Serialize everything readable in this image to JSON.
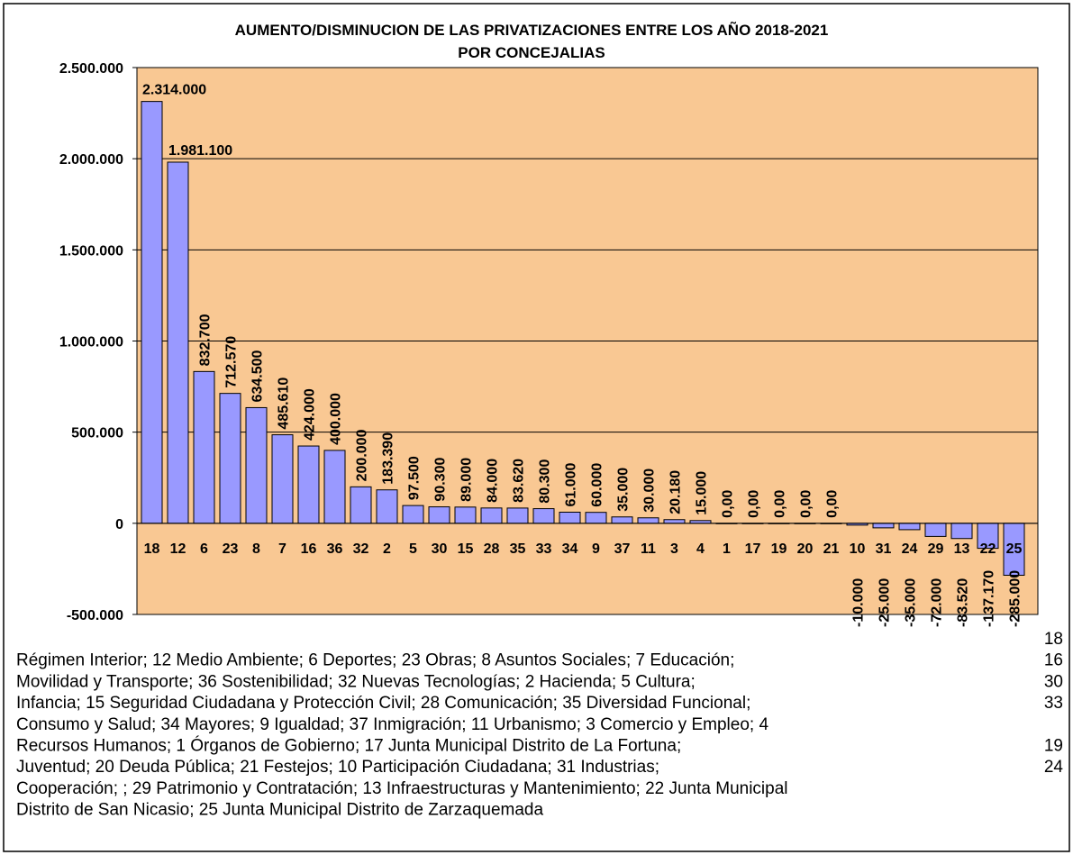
{
  "chart_data": {
    "type": "bar",
    "title_lines": [
      "AUMENTO/DISMINUCION DE LAS PRIVATIZACIONES ENTRE LOS AÑO 2018-2021",
      "POR CONCEJALIAS"
    ],
    "categories": [
      "18",
      "12",
      "6",
      "23",
      "8",
      "7",
      "16",
      "36",
      "32",
      "2",
      "5",
      "30",
      "15",
      "28",
      "35",
      "33",
      "34",
      "9",
      "37",
      "11",
      "3",
      "4",
      "1",
      "17",
      "19",
      "20",
      "21",
      "10",
      "31",
      "24",
      "29",
      "13",
      "22",
      "25"
    ],
    "values": [
      2314000,
      1981100,
      832700,
      712570,
      634500,
      485610,
      424000,
      400000,
      200000,
      183390,
      97500,
      90300,
      89000,
      84000,
      83620,
      80300,
      61000,
      60000,
      35000,
      30000,
      20180,
      15000,
      0,
      0,
      0,
      0,
      0,
      -10000,
      -25000,
      -35000,
      -72000,
      -83520,
      -137170,
      -285000
    ],
    "value_labels": [
      "2.314.000",
      "1.981.100",
      "832.700",
      "712.570",
      "634.500",
      "485.610",
      "424.000",
      "400.000",
      "200.000",
      "183.390",
      "97.500",
      "90.300",
      "89.000",
      "84.000",
      "83.620",
      "80.300",
      "61.000",
      "60.000",
      "35.000",
      "30.000",
      "20.180",
      "15.000",
      "0,00",
      "0,00",
      "0,00",
      "0,00",
      "0,00",
      "-10.000",
      "-25.000",
      "-35.000",
      "-72.000",
      "-83.520",
      "-137.170",
      "-285.000"
    ],
    "color": "#9999ff",
    "background": "#f9c893",
    "ylim": [
      -500000,
      2500000
    ],
    "yticks": [
      {
        "value": -500000,
        "label": "-500.000"
      },
      0,
      {
        "value": 500000,
        "label": "500.000"
      },
      {
        "value": 1000000,
        "label": "1.000.000"
      },
      {
        "value": 1500000,
        "label": "1.500.000"
      },
      {
        "value": 2000000,
        "label": "2.000.000"
      },
      {
        "value": 2500000,
        "label": "2.500.000"
      }
    ],
    "grid": true
  },
  "legend_lines": [
    {
      "end": "18"
    },
    {
      "text": "Régimen Interior; 12 Medio Ambiente; 6 Deportes; 23 Obras; 8 Asuntos Sociales; 7 Educación;",
      "end": "16"
    },
    {
      "text": "Movilidad y Transporte; 36 Sostenibilidad; 32 Nuevas Tecnologías; 2 Hacienda; 5 Cultura;",
      "end": "30"
    },
    {
      "text": "Infancia; 15 Seguridad Ciudadana y Protección Civil; 28 Comunicación; 35 Diversidad Funcional;",
      "end": "33"
    },
    {
      "text": "Consumo y Salud; 34 Mayores; 9 Igualdad; 37 Inmigración; 11 Urbanismo; 3 Comercio y Empleo; 4"
    },
    {
      "text": "Recursos Humanos; 1 Órganos de Gobierno; 17 Junta Municipal Distrito de La Fortuna;",
      "end": "19"
    },
    {
      "text": "Juventud; 20 Deuda Pública; 21 Festejos; 10 Participación Ciudadana; 31 Industrias;",
      "end": "24"
    },
    {
      "text": "Cooperación; ; 29 Patrimonio y Contratación; 13 Infraestructuras y Mantenimiento; 22 Junta Municipal"
    },
    {
      "text": "Distrito de San Nicasio; 25 Junta Municipal Distrito de Zarzaquemada"
    }
  ]
}
